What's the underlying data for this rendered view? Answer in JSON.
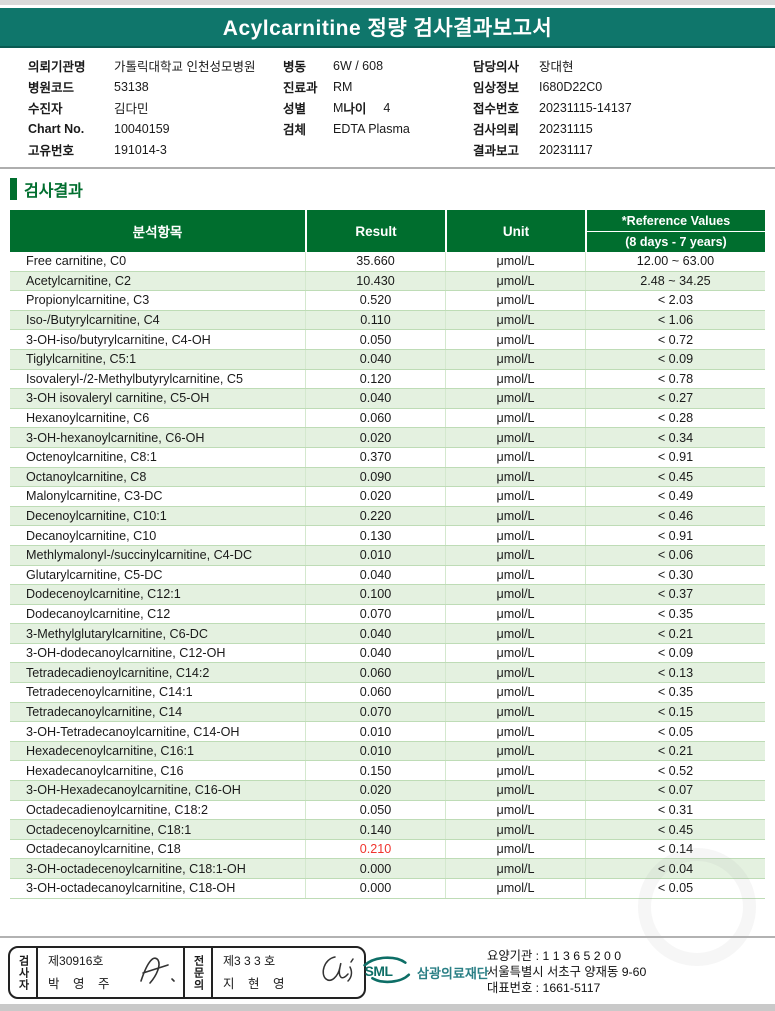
{
  "title": "Acylcarnitine 정량 검사결과보고서",
  "patient_info": {
    "left": [
      {
        "label": "의뢰기관명",
        "value": "가톨릭대학교 인천성모병원"
      },
      {
        "label": "병원코드",
        "value": "53138"
      },
      {
        "label": "수진자",
        "value": "김다민"
      },
      {
        "label": "Chart No.",
        "value": "10040159"
      },
      {
        "label": "고유번호",
        "value": "191014-3"
      }
    ],
    "middle": [
      {
        "label": "병동",
        "value": "6W / 608"
      },
      {
        "label": "진료과",
        "value": "RM"
      },
      {
        "label": "성별",
        "value": "M",
        "label2": "나이",
        "value2": "4"
      },
      {
        "label": "검체",
        "value": "EDTA Plasma"
      }
    ],
    "right": [
      {
        "label": "담당의사",
        "value": "장대현"
      },
      {
        "label": "임상정보",
        "value": "I680D22C0"
      },
      {
        "label": "접수번호",
        "value": "20231115-14137"
      },
      {
        "label": "검사의뢰",
        "value": "20231115"
      },
      {
        "label": "결과보고",
        "value": "20231117"
      }
    ]
  },
  "section": {
    "title": "검사결과"
  },
  "table": {
    "headers": {
      "item": "분석항목",
      "result": "Result",
      "unit": "Unit",
      "reference_line1": "*Reference Values",
      "reference_line2": "(8 days - 7 years)"
    },
    "rows": [
      {
        "name": "Free carnitine, C0",
        "result": "35.660",
        "unit": "μmol/L",
        "reference": "12.00 ~ 63.00"
      },
      {
        "name": "Acetylcarnitine, C2",
        "result": "10.430",
        "unit": "μmol/L",
        "reference": "2.48 ~ 34.25"
      },
      {
        "name": "Propionylcarnitine, C3",
        "result": "0.520",
        "unit": "μmol/L",
        "reference": "< 2.03"
      },
      {
        "name": "Iso-/Butyrylcarnitine, C4",
        "result": "0.110",
        "unit": "μmol/L",
        "reference": "< 1.06"
      },
      {
        "name": "3-OH-iso/butyrylcarnitine, C4-OH",
        "result": "0.050",
        "unit": "μmol/L",
        "reference": "< 0.72"
      },
      {
        "name": "Tiglylcarnitine, C5:1",
        "result": "0.040",
        "unit": "μmol/L",
        "reference": "< 0.09"
      },
      {
        "name": "Isovaleryl-/2-Methylbutyrylcarnitine, C5",
        "result": "0.120",
        "unit": "μmol/L",
        "reference": "< 0.78"
      },
      {
        "name": "3-OH isovaleryl carnitine, C5-OH",
        "result": "0.040",
        "unit": "μmol/L",
        "reference": "< 0.27"
      },
      {
        "name": "Hexanoylcarnitine, C6",
        "result": "0.060",
        "unit": "μmol/L",
        "reference": "< 0.28"
      },
      {
        "name": "3-OH-hexanoylcarnitine, C6-OH",
        "result": "0.020",
        "unit": "μmol/L",
        "reference": "< 0.34"
      },
      {
        "name": "Octenoylcarnitine, C8:1",
        "result": "0.370",
        "unit": "μmol/L",
        "reference": "< 0.91"
      },
      {
        "name": "Octanoylcarnitine, C8",
        "result": "0.090",
        "unit": "μmol/L",
        "reference": "< 0.45"
      },
      {
        "name": "Malonylcarnitine, C3-DC",
        "result": "0.020",
        "unit": "μmol/L",
        "reference": "< 0.49"
      },
      {
        "name": "Decenoylcarnitine, C10:1",
        "result": "0.220",
        "unit": "μmol/L",
        "reference": "< 0.46"
      },
      {
        "name": "Decanoylcarnitine, C10",
        "result": "0.130",
        "unit": "μmol/L",
        "reference": "< 0.91"
      },
      {
        "name": "Methlymalonyl-/succinylcarnitine, C4-DC",
        "result": "0.010",
        "unit": "μmol/L",
        "reference": "< 0.06"
      },
      {
        "name": "Glutarylcarnitine, C5-DC",
        "result": "0.040",
        "unit": "μmol/L",
        "reference": "< 0.30"
      },
      {
        "name": "Dodecenoylcarnitine, C12:1",
        "result": "0.100",
        "unit": "μmol/L",
        "reference": "< 0.37"
      },
      {
        "name": "Dodecanoylcarnitine, C12",
        "result": "0.070",
        "unit": "μmol/L",
        "reference": "< 0.35"
      },
      {
        "name": "3-Methylglutarylcarnitine, C6-DC",
        "result": "0.040",
        "unit": "μmol/L",
        "reference": "< 0.21"
      },
      {
        "name": "3-OH-dodecanoylcarnitine, C12-OH",
        "result": "0.040",
        "unit": "μmol/L",
        "reference": "< 0.09"
      },
      {
        "name": "Tetradecadienoylcarnitine, C14:2",
        "result": "0.060",
        "unit": "μmol/L",
        "reference": "< 0.13"
      },
      {
        "name": "Tetradecenoylcarnitine, C14:1",
        "result": "0.060",
        "unit": "μmol/L",
        "reference": "< 0.35"
      },
      {
        "name": "Tetradecanoylcarnitine, C14",
        "result": "0.070",
        "unit": "μmol/L",
        "reference": "< 0.15"
      },
      {
        "name": "3-OH-Tetradecanoylcarnitine, C14-OH",
        "result": "0.010",
        "unit": "μmol/L",
        "reference": "< 0.05"
      },
      {
        "name": "Hexadecenoylcarnitine, C16:1",
        "result": "0.010",
        "unit": "μmol/L",
        "reference": "< 0.21"
      },
      {
        "name": "Hexadecanoylcarnitine, C16",
        "result": "0.150",
        "unit": "μmol/L",
        "reference": "< 0.52"
      },
      {
        "name": "3-OH-Hexadecanoylcarnitine, C16-OH",
        "result": "0.020",
        "unit": "μmol/L",
        "reference": "< 0.07"
      },
      {
        "name": "Octadecadienoylcarnitine, C18:2",
        "result": "0.050",
        "unit": "μmol/L",
        "reference": "< 0.31"
      },
      {
        "name": "Octadecenoylcarnitine, C18:1",
        "result": "0.140",
        "unit": "μmol/L",
        "reference": "< 0.45"
      },
      {
        "name": "Octadecanoylcarnitine, C18",
        "result": "0.210",
        "unit": "μmol/L",
        "reference": "< 0.14",
        "abnormal": true
      },
      {
        "name": "3-OH-octadecenoylcarnitine, C18:1-OH",
        "result": "0.000",
        "unit": "μmol/L",
        "reference": "< 0.04"
      },
      {
        "name": "3-OH-octadecanoylcarnitine, C18-OH",
        "result": "0.000",
        "unit": "μmol/L",
        "reference": "< 0.05"
      }
    ]
  },
  "footer": {
    "stamp": {
      "examiner_label": "검사자",
      "examiner_cert": "제30916호",
      "examiner_name": "박 영 주",
      "specialist_label": "전문의",
      "specialist_cert": "제3 3 3 호",
      "specialist_name": "지 현 영"
    },
    "sml": {
      "logo_text": "SML",
      "org_name": "삼광의료재단"
    },
    "info_lines": [
      "요양기관 : 1 1 3 6 5 2 0 0",
      "서울특별시 서초구 양재동 9-60",
      "대표번호 : 1661-5117"
    ]
  },
  "colors": {
    "title_bar_teal": "#0f766b",
    "table_header_green": "#006e2e",
    "row_alt_green": "#e4f1e0",
    "row_line_green": "#bedcb6",
    "abnormal_red": "#f0342e",
    "sml_teal": "#0d6e66",
    "org_name_teal": "#2a7f85"
  }
}
